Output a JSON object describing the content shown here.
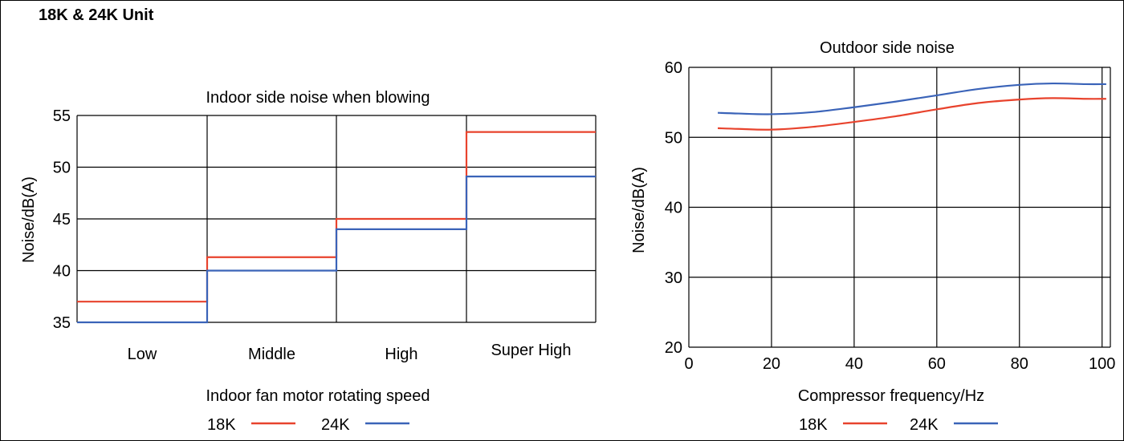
{
  "page_title": "18K & 24K Unit",
  "chart_data": [
    {
      "type": "line",
      "step": true,
      "title": "Indoor side noise when blowing",
      "xlabel": "Indoor fan motor rotating speed",
      "ylabel": "Noise/dB(A)",
      "categories": [
        "Low",
        "Middle",
        "High",
        "Super High"
      ],
      "ylim": [
        35,
        55
      ],
      "yticks": [
        35,
        40,
        45,
        50,
        55
      ],
      "grid": true,
      "legend_position": "bottom-center",
      "series": [
        {
          "name": "18K",
          "color": "#e8432d",
          "values": [
            37,
            41.3,
            45,
            53.4
          ]
        },
        {
          "name": "24K",
          "color": "#3a63b8",
          "values": [
            35,
            40,
            44,
            49.1
          ]
        }
      ]
    },
    {
      "type": "line",
      "title": "Outdoor side noise",
      "xlabel": "Compressor frequency/Hz",
      "ylabel": "Noise/dB(A)",
      "xlim": [
        0,
        102
      ],
      "xticks": [
        0,
        20,
        40,
        60,
        80,
        100
      ],
      "ylim": [
        20,
        60
      ],
      "yticks": [
        20,
        30,
        40,
        50,
        60
      ],
      "grid": true,
      "legend_position": "bottom-center",
      "series": [
        {
          "name": "18K",
          "color": "#e8432d",
          "x": [
            7,
            12,
            20,
            30,
            40,
            50,
            60,
            70,
            80,
            88,
            96,
            101
          ],
          "y": [
            51.3,
            51.2,
            51.1,
            51.5,
            52.2,
            53.0,
            54.0,
            54.9,
            55.4,
            55.6,
            55.5,
            55.5
          ]
        },
        {
          "name": "24K",
          "color": "#3a63b8",
          "x": [
            7,
            12,
            20,
            30,
            40,
            50,
            60,
            70,
            80,
            88,
            96,
            101
          ],
          "y": [
            53.5,
            53.4,
            53.3,
            53.6,
            54.3,
            55.1,
            56.0,
            56.9,
            57.5,
            57.7,
            57.6,
            57.6
          ]
        }
      ]
    }
  ]
}
